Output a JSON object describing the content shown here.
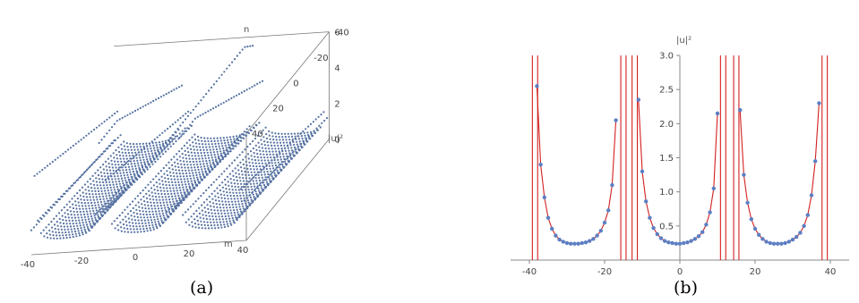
{
  "captions": {
    "a": "(a)",
    "b": "(b)"
  },
  "chart_data": [
    {
      "panel": "a",
      "type": "scatter",
      "xlabel": "m",
      "ylabel": "n",
      "zlabel": "|u|²",
      "xlim": [
        -40,
        40
      ],
      "ylim": [
        -40,
        40
      ],
      "zlim": [
        0,
        6
      ],
      "x_ticks": [
        -40,
        -20,
        0,
        20,
        40
      ],
      "y_ticks": [
        -40,
        -20,
        0,
        20,
        40
      ],
      "z_ticks": [
        0,
        2,
        4,
        6
      ],
      "spike_positions_m": [
        -38.5,
        -15,
        -12,
        11.5,
        15,
        38.5
      ],
      "color": "#5470a0"
    },
    {
      "panel": "b",
      "type": "line",
      "xlabel": "",
      "ylabel": "|u|²",
      "xlim": [
        -40,
        40
      ],
      "ylim": [
        0,
        3.0
      ],
      "x_ticks": [
        -40,
        -20,
        0,
        20,
        40
      ],
      "y_ticks": [
        0.5,
        1.0,
        1.5,
        2.0,
        2.5,
        3.0
      ],
      "y_tick_labels": [
        "0.5",
        "1.0",
        "1.5",
        "2.0",
        "2.5",
        "3.0"
      ],
      "singularities": [
        -38.5,
        -15,
        -12,
        11.5,
        15,
        38.5
      ],
      "line_color": "#d42020",
      "point_color": "#5b7fc4",
      "points": [
        {
          "x": -38,
          "y": 2.55
        },
        {
          "x": -37,
          "y": 1.4
        },
        {
          "x": -36,
          "y": 0.92
        },
        {
          "x": -35,
          "y": 0.62
        },
        {
          "x": -34,
          "y": 0.46
        },
        {
          "x": -33,
          "y": 0.36
        },
        {
          "x": -32,
          "y": 0.3
        },
        {
          "x": -31,
          "y": 0.27
        },
        {
          "x": -30,
          "y": 0.25
        },
        {
          "x": -29,
          "y": 0.24
        },
        {
          "x": -28,
          "y": 0.24
        },
        {
          "x": -27,
          "y": 0.24
        },
        {
          "x": -26,
          "y": 0.25
        },
        {
          "x": -25,
          "y": 0.26
        },
        {
          "x": -24,
          "y": 0.28
        },
        {
          "x": -23,
          "y": 0.31
        },
        {
          "x": -22,
          "y": 0.36
        },
        {
          "x": -21,
          "y": 0.43
        },
        {
          "x": -20,
          "y": 0.55
        },
        {
          "x": -19,
          "y": 0.73
        },
        {
          "x": -18,
          "y": 1.1
        },
        {
          "x": -17,
          "y": 2.05
        },
        {
          "x": -11,
          "y": 2.35
        },
        {
          "x": -10,
          "y": 1.3
        },
        {
          "x": -9,
          "y": 0.86
        },
        {
          "x": -8,
          "y": 0.62
        },
        {
          "x": -7,
          "y": 0.47
        },
        {
          "x": -6,
          "y": 0.38
        },
        {
          "x": -5,
          "y": 0.32
        },
        {
          "x": -4,
          "y": 0.28
        },
        {
          "x": -3,
          "y": 0.26
        },
        {
          "x": -2,
          "y": 0.25
        },
        {
          "x": -1,
          "y": 0.24
        },
        {
          "x": 0,
          "y": 0.24
        },
        {
          "x": 1,
          "y": 0.25
        },
        {
          "x": 2,
          "y": 0.26
        },
        {
          "x": 3,
          "y": 0.28
        },
        {
          "x": 4,
          "y": 0.31
        },
        {
          "x": 5,
          "y": 0.35
        },
        {
          "x": 6,
          "y": 0.41
        },
        {
          "x": 7,
          "y": 0.52
        },
        {
          "x": 8,
          "y": 0.7
        },
        {
          "x": 9,
          "y": 1.05
        },
        {
          "x": 10,
          "y": 2.15
        },
        {
          "x": 16,
          "y": 2.2
        },
        {
          "x": 17,
          "y": 1.25
        },
        {
          "x": 18,
          "y": 0.84
        },
        {
          "x": 19,
          "y": 0.6
        },
        {
          "x": 20,
          "y": 0.46
        },
        {
          "x": 21,
          "y": 0.37
        },
        {
          "x": 22,
          "y": 0.31
        },
        {
          "x": 23,
          "y": 0.27
        },
        {
          "x": 24,
          "y": 0.25
        },
        {
          "x": 25,
          "y": 0.24
        },
        {
          "x": 26,
          "y": 0.24
        },
        {
          "x": 27,
          "y": 0.24
        },
        {
          "x": 28,
          "y": 0.25
        },
        {
          "x": 29,
          "y": 0.27
        },
        {
          "x": 30,
          "y": 0.3
        },
        {
          "x": 31,
          "y": 0.34
        },
        {
          "x": 32,
          "y": 0.4
        },
        {
          "x": 33,
          "y": 0.5
        },
        {
          "x": 34,
          "y": 0.66
        },
        {
          "x": 35,
          "y": 0.95
        },
        {
          "x": 36,
          "y": 1.45
        },
        {
          "x": 37,
          "y": 2.3
        }
      ]
    }
  ]
}
